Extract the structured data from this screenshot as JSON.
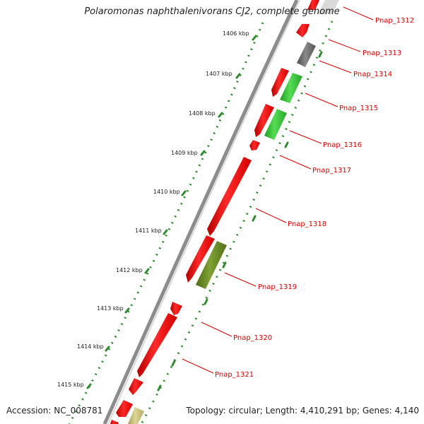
{
  "title": "Polaromonas naphthalenivorans CJ2, complete genome",
  "footer": {
    "accession": "Accession: NC_008781",
    "summary": "Topology: circular; Length: 4,410,291 bp; Genes: 4,140"
  },
  "colors": {
    "forward_cds": "#ff1a1a",
    "backbone": "#8c8c8c",
    "tick": "#2e8b2e",
    "label": "#d40000",
    "green_gene": "#33cc33",
    "olive_gene": "#6b8e23",
    "gray_gene": "#6e6e6e",
    "khaki_gene": "#c8c07a"
  },
  "scale_ticks": [
    {
      "label": "1406 kbp"
    },
    {
      "label": "1407 kbp"
    },
    {
      "label": "1408 kbp"
    },
    {
      "label": "1409 kbp"
    },
    {
      "label": "1410 kbp"
    },
    {
      "label": "1411 kbp"
    },
    {
      "label": "1412 kbp"
    },
    {
      "label": "1413 kbp"
    },
    {
      "label": "1414 kbp"
    },
    {
      "label": "1415 kbp"
    }
  ],
  "genes": [
    {
      "label": "Pnap_1312"
    },
    {
      "label": "Pnap_1313"
    },
    {
      "label": "Pnap_1314"
    },
    {
      "label": "Pnap_1315"
    },
    {
      "label": "Pnap_1316"
    },
    {
      "label": "Pnap_1317"
    },
    {
      "label": "Pnap_1318"
    },
    {
      "label": "Pnap_1319"
    },
    {
      "label": "Pnap_1320"
    },
    {
      "label": "Pnap_1321"
    }
  ]
}
